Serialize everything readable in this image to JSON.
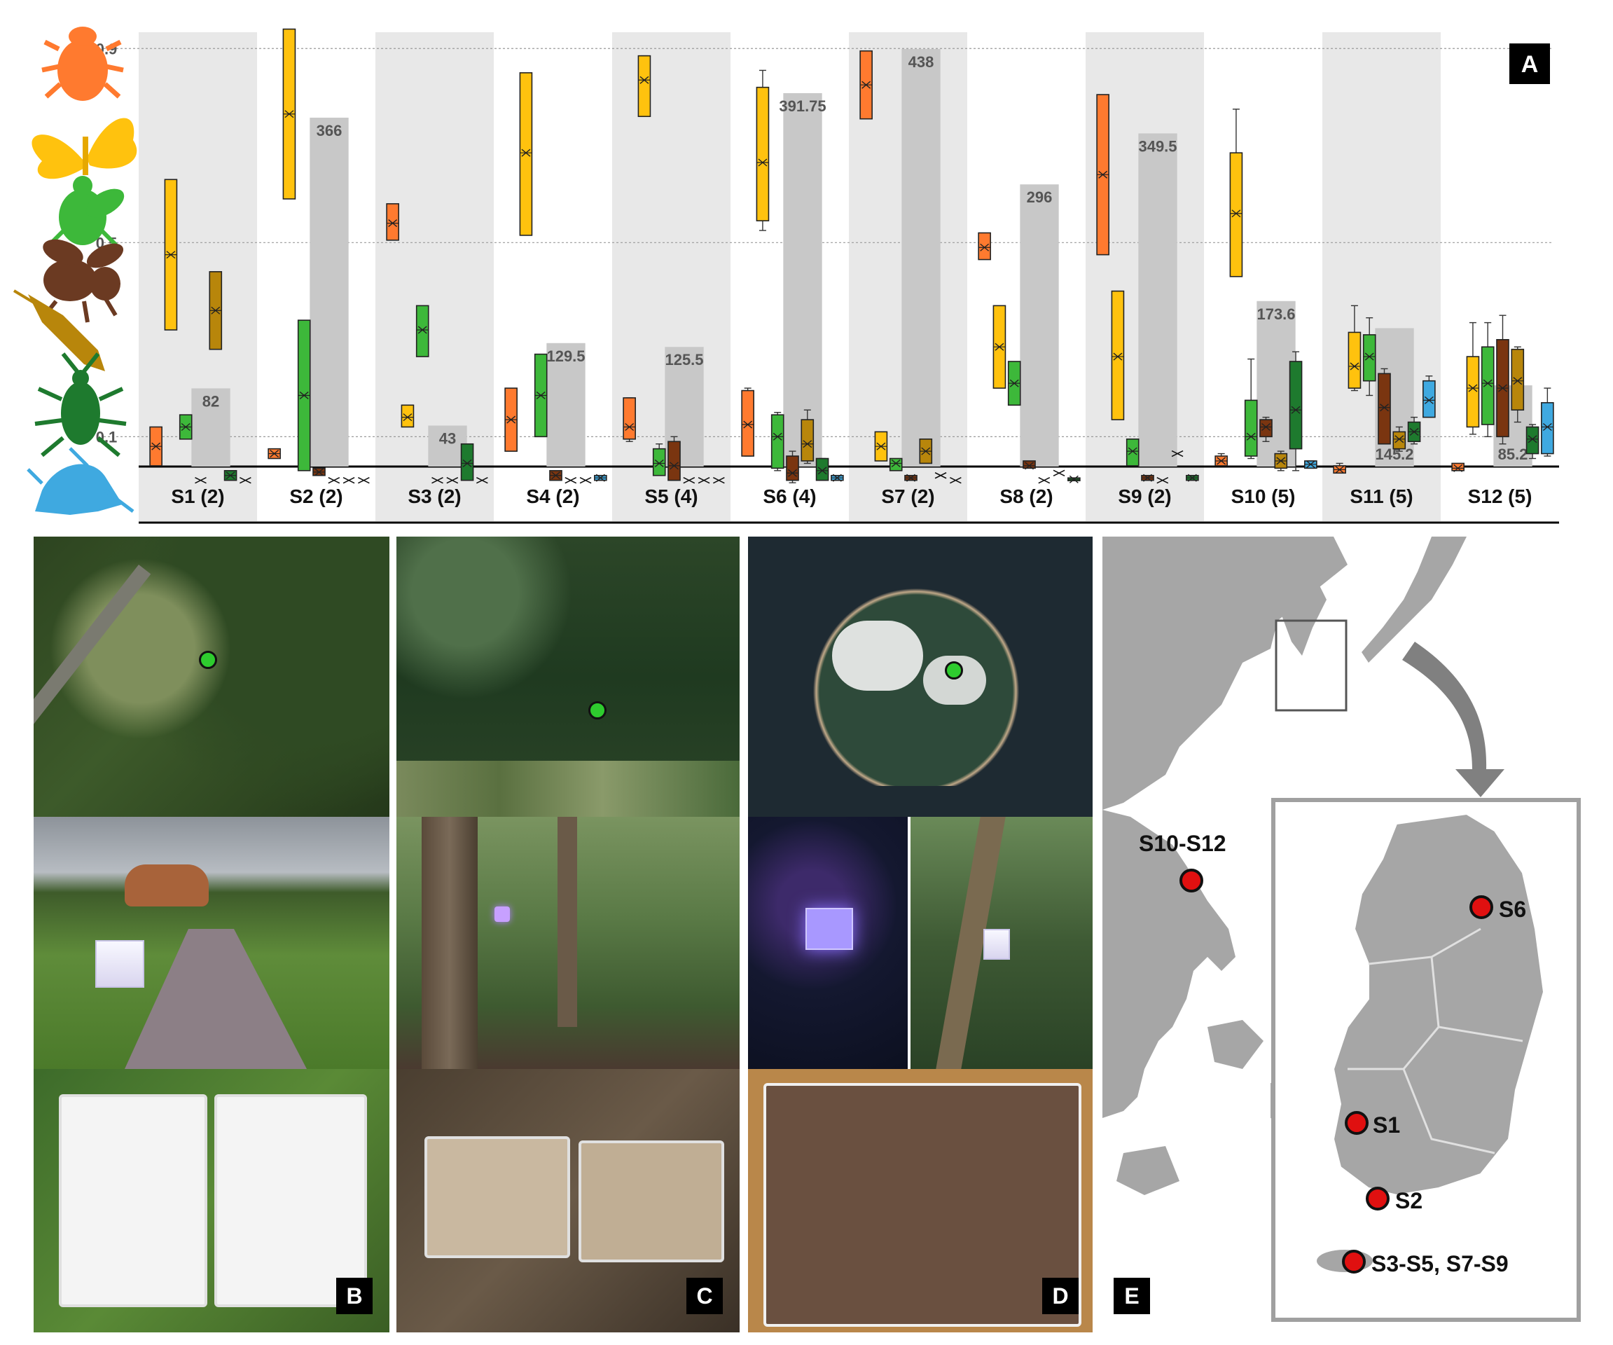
{
  "panel_tags": {
    "a": "A",
    "b": "B",
    "c": "C",
    "d": "D",
    "e": "E"
  },
  "map_labels": {
    "s10_s12": "S10-S12",
    "s6": "S6",
    "s1": "S1",
    "s2": "S2",
    "s3_s9": "S3-S5, S7-S9"
  },
  "colors": {
    "orange": "#FF7A2F",
    "yellow": "#FFC20E",
    "green": "#3DB83A",
    "brown": "#7A3510",
    "ochre": "#B8860B",
    "darkgreen": "#1E7A2E",
    "blue": "#3FA9E0",
    "bar_gray": "#C8C8C8",
    "band_gray": "#E8E8E8"
  },
  "icons": [
    "beetle-icon",
    "butterfly-icon",
    "fly-icon",
    "bee-icon",
    "moth-icon",
    "bug-icon",
    "mosquito-icon"
  ],
  "chart_data": {
    "type": "box",
    "y_ticks": [
      "0.9",
      "0.5",
      "0.1"
    ],
    "y_tick_values": [
      0.9,
      0.5,
      0.1
    ],
    "ylim": [
      0,
      1.0
    ],
    "sites": [
      {
        "label": "S1 (2)",
        "bar": 82,
        "bar_label": "82",
        "boxes": [
          {
            "c": "orange",
            "q1": 0.04,
            "q3": 0.12,
            "med": 0.08
          },
          {
            "c": "yellow",
            "q1": 0.32,
            "q3": 0.63,
            "med": 0.475
          },
          {
            "c": "green",
            "q1": 0.095,
            "q3": 0.145,
            "med": 0.12
          },
          {
            "c": "gray",
            "q1": 0.01,
            "q3": 0.01,
            "med": 0.01
          },
          {
            "c": "ochre",
            "q1": 0.28,
            "q3": 0.44,
            "med": 0.36
          },
          {
            "c": "darkgreen",
            "q1": 0.01,
            "q3": 0.03,
            "med": 0.02
          },
          {
            "c": "gray",
            "q1": 0.01,
            "q3": 0.01,
            "med": 0.01
          }
        ]
      },
      {
        "label": "S2 (2)",
        "bar": 366,
        "bar_label": "366",
        "boxes": [
          {
            "c": "orange",
            "q1": 0.055,
            "q3": 0.075,
            "med": 0.065
          },
          {
            "c": "yellow",
            "q1": 0.59,
            "q3": 0.94,
            "med": 0.765
          },
          {
            "c": "green",
            "q1": 0.03,
            "q3": 0.34,
            "med": 0.185
          },
          {
            "c": "brown",
            "q1": 0.02,
            "q3": 0.035,
            "med": 0.027
          },
          {
            "c": "gray",
            "q1": 0.01,
            "q3": 0.01,
            "med": 0.01
          },
          {
            "c": "gray",
            "q1": 0.01,
            "q3": 0.01,
            "med": 0.01
          },
          {
            "c": "gray",
            "q1": 0.01,
            "q3": 0.01,
            "med": 0.01
          }
        ]
      },
      {
        "label": "S3 (2)",
        "bar": 43,
        "bar_label": "43",
        "boxes": [
          {
            "c": "orange",
            "q1": 0.505,
            "q3": 0.58,
            "med": 0.54
          },
          {
            "c": "yellow",
            "q1": 0.12,
            "q3": 0.165,
            "med": 0.14
          },
          {
            "c": "green",
            "q1": 0.265,
            "q3": 0.37,
            "med": 0.32
          },
          {
            "c": "gray",
            "q1": 0.01,
            "q3": 0.01,
            "med": 0.01
          },
          {
            "c": "gray",
            "q1": 0.01,
            "q3": 0.01,
            "med": 0.01
          },
          {
            "c": "darkgreen",
            "q1": 0.01,
            "q3": 0.085,
            "med": 0.045
          },
          {
            "c": "gray",
            "q1": 0.01,
            "q3": 0.01,
            "med": 0.01
          }
        ]
      },
      {
        "label": "S4 (2)",
        "bar": 129.5,
        "bar_label": "129.5",
        "boxes": [
          {
            "c": "orange",
            "q1": 0.07,
            "q3": 0.2,
            "med": 0.135
          },
          {
            "c": "yellow",
            "q1": 0.515,
            "q3": 0.85,
            "med": 0.685
          },
          {
            "c": "green",
            "q1": 0.1,
            "q3": 0.27,
            "med": 0.185
          },
          {
            "c": "brown",
            "q1": 0.01,
            "q3": 0.03,
            "med": 0.02
          },
          {
            "c": "gray",
            "q1": 0.01,
            "q3": 0.01,
            "med": 0.01
          },
          {
            "c": "gray",
            "q1": 0.01,
            "q3": 0.01,
            "med": 0.01
          },
          {
            "c": "blue",
            "q1": 0.01,
            "q3": 0.02,
            "med": 0.015
          }
        ]
      },
      {
        "label": "S5 (4)",
        "bar": 125.5,
        "bar_label": "125.5",
        "boxes": [
          {
            "c": "orange",
            "q1": 0.095,
            "q3": 0.18,
            "med": 0.12,
            "w1": 0.09,
            "w2": 0.18
          },
          {
            "c": "yellow",
            "q1": 0.76,
            "q3": 0.885,
            "med": 0.835,
            "w1": 0.76,
            "w2": 0.885
          },
          {
            "c": "green",
            "q1": 0.02,
            "q3": 0.075,
            "med": 0.045,
            "w1": 0.02,
            "w2": 0.085
          },
          {
            "c": "brown",
            "q1": 0.01,
            "q3": 0.09,
            "med": 0.04,
            "w1": 0.01,
            "w2": 0.1
          },
          {
            "c": "gray",
            "q1": 0.01,
            "q3": 0.01,
            "med": 0.01
          },
          {
            "c": "gray",
            "q1": 0.01,
            "q3": 0.01,
            "med": 0.01
          },
          {
            "c": "gray",
            "q1": 0.01,
            "q3": 0.01,
            "med": 0.01
          }
        ]
      },
      {
        "label": "S6 (4)",
        "bar": 391.75,
        "bar_label": "391.75",
        "boxes": [
          {
            "c": "orange",
            "q1": 0.06,
            "q3": 0.195,
            "med": 0.125,
            "w1": 0.06,
            "w2": 0.2
          },
          {
            "c": "yellow",
            "q1": 0.545,
            "q3": 0.82,
            "med": 0.665,
            "w1": 0.525,
            "w2": 0.855
          },
          {
            "c": "green",
            "q1": 0.035,
            "q3": 0.145,
            "med": 0.1,
            "w1": 0.03,
            "w2": 0.15
          },
          {
            "c": "brown",
            "q1": 0.01,
            "q3": 0.06,
            "med": 0.025,
            "w1": 0.005,
            "w2": 0.07
          },
          {
            "c": "ochre",
            "q1": 0.05,
            "q3": 0.135,
            "med": 0.085,
            "w1": 0.045,
            "w2": 0.155
          },
          {
            "c": "darkgreen",
            "q1": 0.01,
            "q3": 0.055,
            "med": 0.03,
            "w1": 0.01,
            "w2": 0.055
          },
          {
            "c": "blue",
            "q1": 0.01,
            "q3": 0.02,
            "med": 0.015,
            "w1": 0.01,
            "w2": 0.02
          }
        ]
      },
      {
        "label": "S7 (2)",
        "bar": 438,
        "bar_label": "438",
        "boxes": [
          {
            "c": "orange",
            "q1": 0.755,
            "q3": 0.895,
            "med": 0.825
          },
          {
            "c": "yellow",
            "q1": 0.05,
            "q3": 0.11,
            "med": 0.08
          },
          {
            "c": "green",
            "q1": 0.03,
            "q3": 0.055,
            "med": 0.045
          },
          {
            "c": "brown",
            "q1": 0.01,
            "q3": 0.02,
            "med": 0.015
          },
          {
            "c": "ochre",
            "q1": 0.045,
            "q3": 0.095,
            "med": 0.07
          },
          {
            "c": "gray",
            "q1": 0.02,
            "q3": 0.02,
            "med": 0.02
          },
          {
            "c": "gray",
            "q1": 0.01,
            "q3": 0.01,
            "med": 0.01
          }
        ]
      },
      {
        "label": "S8 (2)",
        "bar": 296,
        "bar_label": "296",
        "boxes": [
          {
            "c": "orange",
            "q1": 0.465,
            "q3": 0.52,
            "med": 0.49
          },
          {
            "c": "yellow",
            "q1": 0.2,
            "q3": 0.37,
            "med": 0.285
          },
          {
            "c": "green",
            "q1": 0.165,
            "q3": 0.255,
            "med": 0.21
          },
          {
            "c": "brown",
            "q1": 0.035,
            "q3": 0.05,
            "med": 0.04
          },
          {
            "c": "gray",
            "q1": 0.01,
            "q3": 0.01,
            "med": 0.01
          },
          {
            "c": "gray",
            "q1": 0.025,
            "q3": 0.025,
            "med": 0.025
          },
          {
            "c": "darkgreen",
            "q1": 0.01,
            "q3": 0.015,
            "med": 0.012
          }
        ]
      },
      {
        "label": "S9 (2)",
        "bar": 349.5,
        "bar_label": "349.5",
        "boxes": [
          {
            "c": "orange",
            "q1": 0.475,
            "q3": 0.805,
            "med": 0.64
          },
          {
            "c": "yellow",
            "q1": 0.135,
            "q3": 0.4,
            "med": 0.265
          },
          {
            "c": "green",
            "q1": 0.04,
            "q3": 0.095,
            "med": 0.07
          },
          {
            "c": "brown",
            "q1": 0.01,
            "q3": 0.02,
            "med": 0.015
          },
          {
            "c": "gray",
            "q1": 0.01,
            "q3": 0.01,
            "med": 0.01
          },
          {
            "c": "gray",
            "q1": 0.065,
            "q3": 0.065,
            "med": 0.065
          },
          {
            "c": "darkgreen",
            "q1": 0.01,
            "q3": 0.02,
            "med": 0.015
          }
        ]
      },
      {
        "label": "S10 (5)",
        "bar": 173.6,
        "bar_label": "173.6",
        "boxes": [
          {
            "c": "orange",
            "q1": 0.04,
            "q3": 0.06,
            "med": 0.05,
            "w1": 0.04,
            "w2": 0.065
          },
          {
            "c": "yellow",
            "q1": 0.43,
            "q3": 0.685,
            "med": 0.56,
            "w1": 0.43,
            "w2": 0.775
          },
          {
            "c": "green",
            "q1": 0.06,
            "q3": 0.175,
            "med": 0.1,
            "w1": 0.055,
            "w2": 0.26
          },
          {
            "c": "brown",
            "q1": 0.1,
            "q3": 0.135,
            "med": 0.12,
            "w1": 0.09,
            "w2": 0.14
          },
          {
            "c": "ochre",
            "q1": 0.035,
            "q3": 0.065,
            "med": 0.05,
            "w1": 0.03,
            "w2": 0.07
          },
          {
            "c": "darkgreen",
            "q1": 0.075,
            "q3": 0.255,
            "med": 0.155,
            "w1": 0.03,
            "w2": 0.275
          },
          {
            "c": "blue",
            "q1": 0.035,
            "q3": 0.05,
            "med": 0.043,
            "w1": 0.035,
            "w2": 0.05
          }
        ]
      },
      {
        "label": "S11 (5)",
        "bar": 145.2,
        "bar_label": "145.2",
        "bar_label_pos": "bottom",
        "boxes": [
          {
            "c": "orange",
            "q1": 0.025,
            "q3": 0.04,
            "med": 0.032,
            "w1": 0.025,
            "w2": 0.045
          },
          {
            "c": "yellow",
            "q1": 0.2,
            "q3": 0.315,
            "med": 0.245,
            "w1": 0.195,
            "w2": 0.37
          },
          {
            "c": "green",
            "q1": 0.215,
            "q3": 0.31,
            "med": 0.265,
            "w1": 0.185,
            "w2": 0.345
          },
          {
            "c": "brown",
            "q1": 0.085,
            "q3": 0.23,
            "med": 0.16,
            "w1": 0.085,
            "w2": 0.24
          },
          {
            "c": "ochre",
            "q1": 0.075,
            "q3": 0.11,
            "med": 0.095,
            "w1": 0.07,
            "w2": 0.12
          },
          {
            "c": "darkgreen",
            "q1": 0.09,
            "q3": 0.13,
            "med": 0.11,
            "w1": 0.085,
            "w2": 0.14
          },
          {
            "c": "blue",
            "q1": 0.14,
            "q3": 0.215,
            "med": 0.175,
            "w1": 0.14,
            "w2": 0.225
          }
        ]
      },
      {
        "label": "S12 (5)",
        "bar": 85.2,
        "bar_label": "85.2",
        "bar_label_pos": "bottom",
        "boxes": [
          {
            "c": "orange",
            "q1": 0.03,
            "q3": 0.045,
            "med": 0.035
          },
          {
            "c": "yellow",
            "q1": 0.12,
            "q3": 0.265,
            "med": 0.2,
            "w1": 0.105,
            "w2": 0.335
          },
          {
            "c": "green",
            "q1": 0.125,
            "q3": 0.285,
            "med": 0.21,
            "w1": 0.1,
            "w2": 0.335
          },
          {
            "c": "brown",
            "q1": 0.1,
            "q3": 0.3,
            "med": 0.2,
            "w1": 0.085,
            "w2": 0.35
          },
          {
            "c": "ochre",
            "q1": 0.155,
            "q3": 0.28,
            "med": 0.215,
            "w1": 0.13,
            "w2": 0.285
          },
          {
            "c": "darkgreen",
            "q1": 0.065,
            "q3": 0.12,
            "med": 0.095,
            "w1": 0.055,
            "w2": 0.125
          },
          {
            "c": "blue",
            "q1": 0.065,
            "q3": 0.17,
            "med": 0.12,
            "w1": 0.06,
            "w2": 0.2
          }
        ]
      }
    ]
  }
}
